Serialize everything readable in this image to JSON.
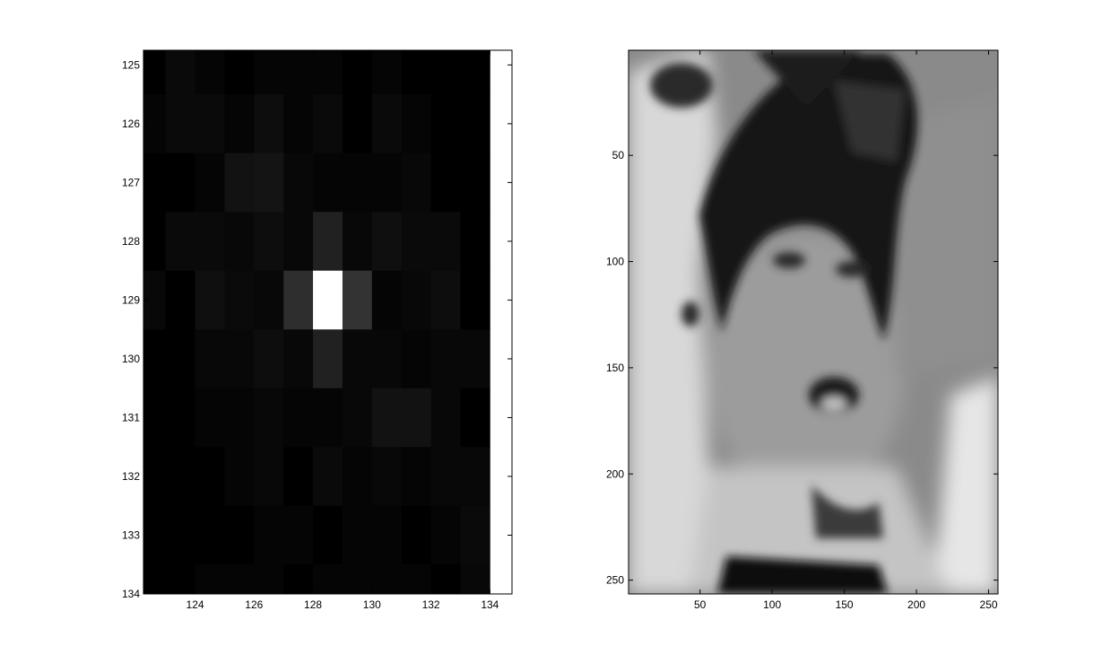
{
  "chart_data": [
    {
      "type": "heatmap",
      "colormap": "gray",
      "title": "",
      "xlabel": "",
      "ylabel": "",
      "xlim": [
        122.25,
        134.75
      ],
      "ylim": [
        124.75,
        134
      ],
      "x_start": 122.5,
      "y_start": 125,
      "xticks": [
        124,
        126,
        128,
        130,
        132,
        134
      ],
      "yticks": [
        125,
        126,
        127,
        128,
        129,
        130,
        131,
        132,
        133,
        134
      ],
      "xtick_labels": [
        "124",
        "126",
        "128",
        "130",
        "132",
        "134"
      ],
      "ytick_labels": [
        "125",
        "126",
        "127",
        "128",
        "129",
        "130",
        "131",
        "132",
        "133",
        "134"
      ],
      "values": [
        [
          0.0,
          0.04,
          0.02,
          0.0,
          0.02,
          0.02,
          0.02,
          0.0,
          0.02,
          0.0,
          0.0,
          0.0
        ],
        [
          0.02,
          0.04,
          0.04,
          0.02,
          0.05,
          0.02,
          0.04,
          0.0,
          0.04,
          0.02,
          0.0,
          0.0
        ],
        [
          0.0,
          0.0,
          0.02,
          0.07,
          0.08,
          0.03,
          0.02,
          0.02,
          0.02,
          0.03,
          0.0,
          0.0
        ],
        [
          0.0,
          0.04,
          0.04,
          0.03,
          0.05,
          0.03,
          0.13,
          0.03,
          0.06,
          0.04,
          0.04,
          0.0
        ],
        [
          0.03,
          0.0,
          0.06,
          0.04,
          0.03,
          0.18,
          1.0,
          0.2,
          0.02,
          0.03,
          0.05,
          0.0
        ],
        [
          0.0,
          0.0,
          0.03,
          0.03,
          0.05,
          0.03,
          0.13,
          0.03,
          0.03,
          0.02,
          0.03,
          0.03
        ],
        [
          0.0,
          0.0,
          0.02,
          0.02,
          0.03,
          0.02,
          0.02,
          0.03,
          0.07,
          0.07,
          0.03,
          0.0
        ],
        [
          0.0,
          0.0,
          0.0,
          0.02,
          0.03,
          0.0,
          0.04,
          0.02,
          0.03,
          0.02,
          0.03,
          0.03
        ],
        [
          0.0,
          0.0,
          0.0,
          0.0,
          0.02,
          0.02,
          0.0,
          0.02,
          0.02,
          0.0,
          0.02,
          0.04
        ],
        [
          0.0,
          0.0,
          0.02,
          0.02,
          0.02,
          0.0,
          0.02,
          0.02,
          0.02,
          0.02,
          0.0,
          0.03
        ]
      ]
    },
    {
      "type": "heatmap",
      "colormap": "gray",
      "description_hint": "grayscale image of a face",
      "title": "",
      "xlabel": "",
      "ylabel": "",
      "xlim": [
        0.5,
        256.5
      ],
      "ylim": [
        0.5,
        256.5
      ],
      "xticks": [
        50,
        100,
        150,
        200,
        250
      ],
      "yticks": [
        50,
        100,
        150,
        200,
        250
      ],
      "xtick_labels": [
        "50",
        "100",
        "150",
        "200",
        "250"
      ],
      "ytick_labels": [
        "50",
        "100",
        "150",
        "200",
        "250"
      ]
    }
  ]
}
